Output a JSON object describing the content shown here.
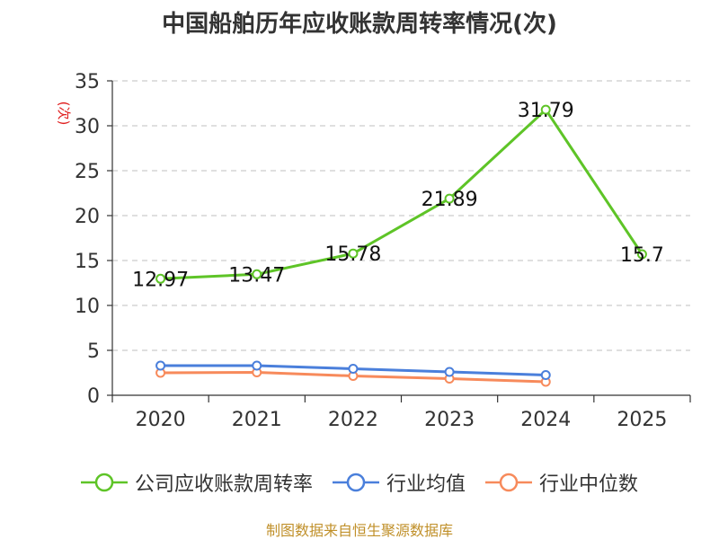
{
  "chart_data": {
    "type": "line",
    "title": "中国船舶历年应收账款周转率情况(次)",
    "ylabel": "(次)",
    "xlabel": "",
    "ylim": [
      0,
      35
    ],
    "yticks": [
      0,
      5,
      10,
      15,
      20,
      25,
      30,
      35
    ],
    "categories": [
      "2020",
      "2021",
      "2022",
      "2023",
      "2024",
      "2025"
    ],
    "grid": true,
    "legend_position": "bottom-center",
    "series": [
      {
        "name": "公司应收账款周转率",
        "color": "#5ec427",
        "values": [
          12.97,
          13.47,
          15.78,
          21.89,
          31.79,
          15.7
        ],
        "labels": [
          "12.97",
          "13.47",
          "15.78",
          "21.89",
          "31.79",
          "15.7"
        ],
        "show_labels": true
      },
      {
        "name": "行业均值",
        "color": "#4a7fdb",
        "values": [
          3.3,
          3.3,
          2.95,
          2.6,
          2.25,
          null
        ],
        "show_labels": false
      },
      {
        "name": "行业中位数",
        "color": "#f78a5b",
        "values": [
          2.5,
          2.55,
          2.15,
          1.85,
          1.5,
          null
        ],
        "show_labels": false
      }
    ]
  },
  "source": {
    "text": "制图数据来自恒生聚源数据库",
    "color": "#c0902a"
  }
}
